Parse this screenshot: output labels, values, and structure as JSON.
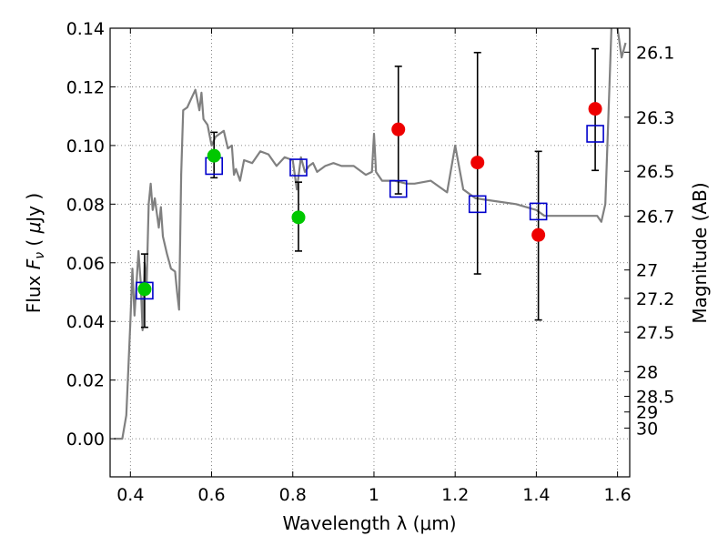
{
  "chart_data": {
    "type": "scatter",
    "xlabel": "Wavelength  λ (μm)",
    "ylabel": "Flux  F_ν  ( μJy )",
    "y2label": "Magnitude (AB)",
    "xlim": [
      0.35,
      1.63
    ],
    "ylim": [
      -0.013,
      0.14
    ],
    "grid": true,
    "x_ticks": [
      0.4,
      0.6,
      0.8,
      1.0,
      1.2,
      1.4,
      1.6
    ],
    "x_tick_labels": [
      "0.4",
      "0.6",
      "0.8",
      "1",
      "1.2",
      "1.4",
      "1.6"
    ],
    "y_ticks": [
      0.0,
      0.02,
      0.04,
      0.06,
      0.08,
      0.1,
      0.12,
      0.14
    ],
    "y_tick_labels": [
      "0.00",
      "0.02",
      "0.04",
      "0.06",
      "0.08",
      "0.10",
      "0.12",
      "0.14"
    ],
    "mag_ticks": [
      26.1,
      26.3,
      26.5,
      26.7,
      27,
      27.2,
      27.5,
      28,
      28.5,
      29,
      30
    ],
    "mag_tick_labels": [
      "26.1",
      "26.3",
      "26.5",
      "26.7",
      "27",
      "27.2",
      "27.5",
      "28",
      "28.5",
      "29",
      "30"
    ],
    "colors": {
      "model": "#808080",
      "green": "#00c800",
      "red": "#ee0000",
      "square": "#0000cc",
      "errorbar": "#000000"
    },
    "model_spectrum": {
      "x": [
        0.36,
        0.38,
        0.39,
        0.4,
        0.405,
        0.41,
        0.42,
        0.425,
        0.43,
        0.435,
        0.44,
        0.445,
        0.45,
        0.455,
        0.46,
        0.47,
        0.475,
        0.48,
        0.49,
        0.5,
        0.51,
        0.515,
        0.52,
        0.525,
        0.53,
        0.54,
        0.55,
        0.56,
        0.57,
        0.575,
        0.58,
        0.59,
        0.6,
        0.61,
        0.62,
        0.63,
        0.64,
        0.65,
        0.655,
        0.66,
        0.67,
        0.68,
        0.7,
        0.72,
        0.74,
        0.76,
        0.78,
        0.8,
        0.81,
        0.82,
        0.83,
        0.84,
        0.85,
        0.86,
        0.88,
        0.9,
        0.92,
        0.95,
        0.98,
        0.995,
        1.0,
        1.005,
        1.02,
        1.05,
        1.08,
        1.1,
        1.14,
        1.18,
        1.2,
        1.22,
        1.25,
        1.3,
        1.35,
        1.4,
        1.42,
        1.45,
        1.5,
        1.55,
        1.56,
        1.57,
        1.58,
        1.585,
        1.59,
        1.6,
        1.61,
        1.62
      ],
      "y": [
        0.0,
        0.0,
        0.008,
        0.04,
        0.058,
        0.042,
        0.064,
        0.054,
        0.037,
        0.06,
        0.052,
        0.08,
        0.087,
        0.078,
        0.082,
        0.072,
        0.079,
        0.069,
        0.063,
        0.058,
        0.057,
        0.05,
        0.044,
        0.09,
        0.112,
        0.113,
        0.116,
        0.119,
        0.112,
        0.118,
        0.109,
        0.107,
        0.1,
        0.103,
        0.104,
        0.105,
        0.099,
        0.1,
        0.09,
        0.092,
        0.088,
        0.095,
        0.094,
        0.098,
        0.097,
        0.093,
        0.096,
        0.095,
        0.085,
        0.096,
        0.091,
        0.093,
        0.094,
        0.091,
        0.093,
        0.094,
        0.093,
        0.093,
        0.09,
        0.091,
        0.104,
        0.091,
        0.088,
        0.088,
        0.087,
        0.087,
        0.088,
        0.084,
        0.1,
        0.085,
        0.082,
        0.081,
        0.08,
        0.078,
        0.076,
        0.076,
        0.076,
        0.076,
        0.074,
        0.08,
        0.12,
        0.14,
        0.145,
        0.14,
        0.13,
        0.135
      ]
    },
    "observed_green": [
      {
        "x": 0.435,
        "y": 0.051,
        "yerr_low": 0.013,
        "yerr_high": 0.012
      },
      {
        "x": 0.606,
        "y": 0.0965,
        "yerr_low": 0.0075,
        "yerr_high": 0.008
      },
      {
        "x": 0.814,
        "y": 0.0755,
        "yerr_low": 0.0115,
        "yerr_high": 0.012
      }
    ],
    "observed_red": [
      {
        "x": 1.06,
        "y": 0.1055,
        "yerr_low": 0.022,
        "yerr_high": 0.0215
      },
      {
        "x": 1.255,
        "y": 0.0942,
        "yerr_low": 0.038,
        "yerr_high": 0.0375
      },
      {
        "x": 1.405,
        "y": 0.0695,
        "yerr_low": 0.029,
        "yerr_high": 0.0285
      },
      {
        "x": 1.545,
        "y": 0.1125,
        "yerr_low": 0.021,
        "yerr_high": 0.0205
      }
    ],
    "model_bandpass": [
      {
        "x": 0.435,
        "y": 0.0505
      },
      {
        "x": 0.606,
        "y": 0.093
      },
      {
        "x": 0.814,
        "y": 0.0925
      },
      {
        "x": 1.06,
        "y": 0.0852
      },
      {
        "x": 1.255,
        "y": 0.08
      },
      {
        "x": 1.405,
        "y": 0.0775
      },
      {
        "x": 1.545,
        "y": 0.104
      }
    ]
  }
}
